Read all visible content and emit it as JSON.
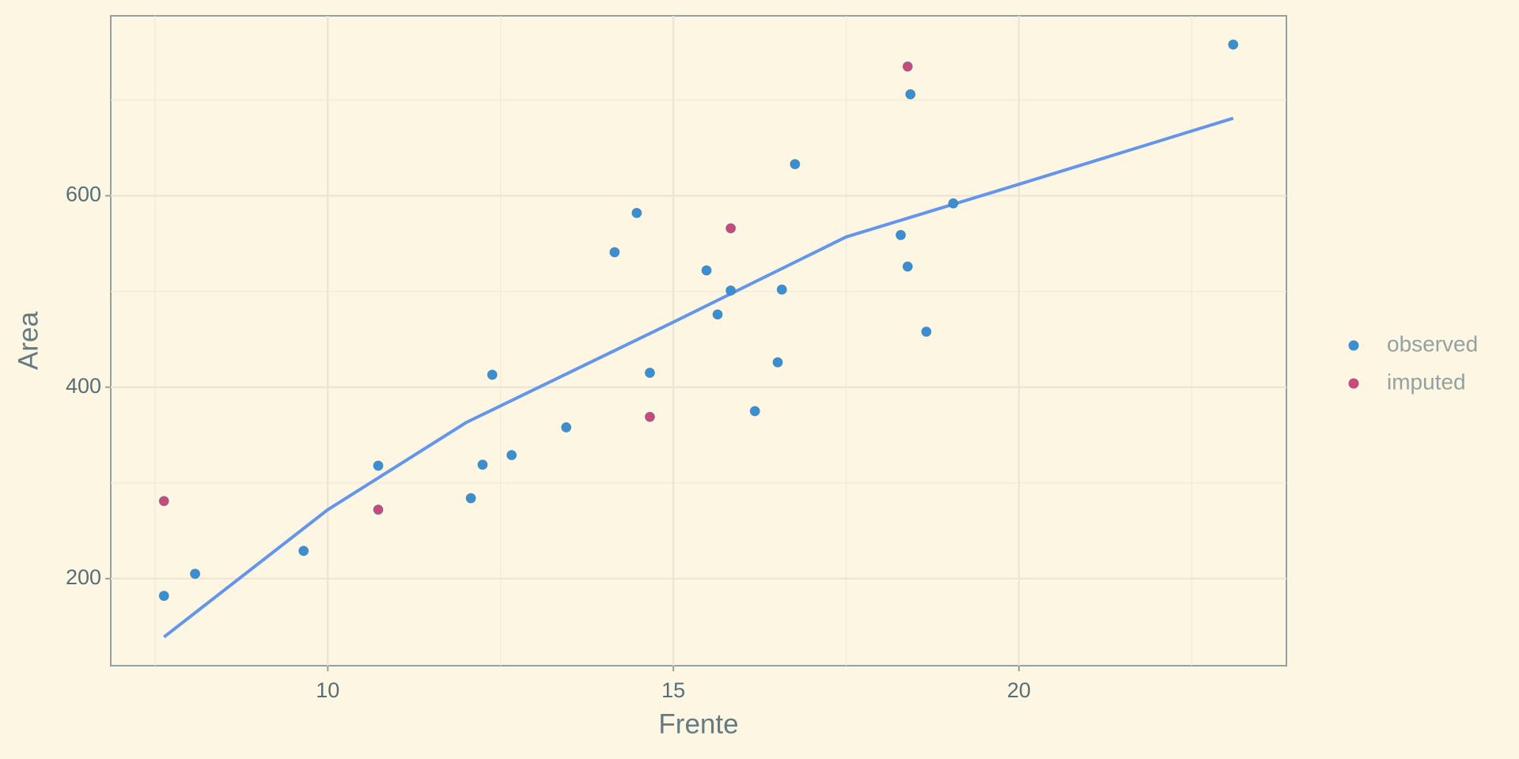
{
  "chart_data": {
    "type": "scatter",
    "x_label": "Frente",
    "y_label": "Area",
    "xlim": [
      6.86,
      23.87
    ],
    "ylim": [
      109,
      788
    ],
    "xticks": [
      10,
      15,
      20
    ],
    "yticks": [
      200,
      400,
      600
    ],
    "xminor": [
      7.5,
      12.5,
      17.5,
      22.5
    ],
    "yminor": [
      300,
      500,
      700
    ],
    "grid": true,
    "legend": "right",
    "series": [
      {
        "name": "observed",
        "color": "#3b8fd0",
        "x": [
          7.63,
          8.08,
          9.65,
          10.73,
          12.07,
          12.24,
          12.38,
          12.66,
          13.45,
          14.15,
          14.47,
          14.66,
          15.48,
          15.64,
          15.83,
          16.18,
          16.51,
          16.57,
          16.76,
          18.29,
          18.39,
          18.43,
          18.66,
          19.05,
          23.1
        ],
        "y": [
          182,
          205,
          229,
          318,
          284,
          319,
          413,
          329,
          358,
          541,
          582,
          415,
          522,
          476,
          501,
          375,
          426,
          502,
          633,
          559,
          526,
          706,
          458,
          592,
          758
        ]
      },
      {
        "name": "imputed",
        "color": "#c9497a",
        "x": [
          7.63,
          10.73,
          14.66,
          15.83,
          18.39
        ],
        "y": [
          281,
          272,
          369,
          566,
          735
        ]
      }
    ],
    "fit": {
      "color": "#6495ed",
      "x": [
        7.63,
        10,
        12,
        15,
        17.5,
        20,
        23.1
      ],
      "y": [
        139,
        272,
        363,
        468,
        557,
        612,
        681
      ]
    }
  }
}
